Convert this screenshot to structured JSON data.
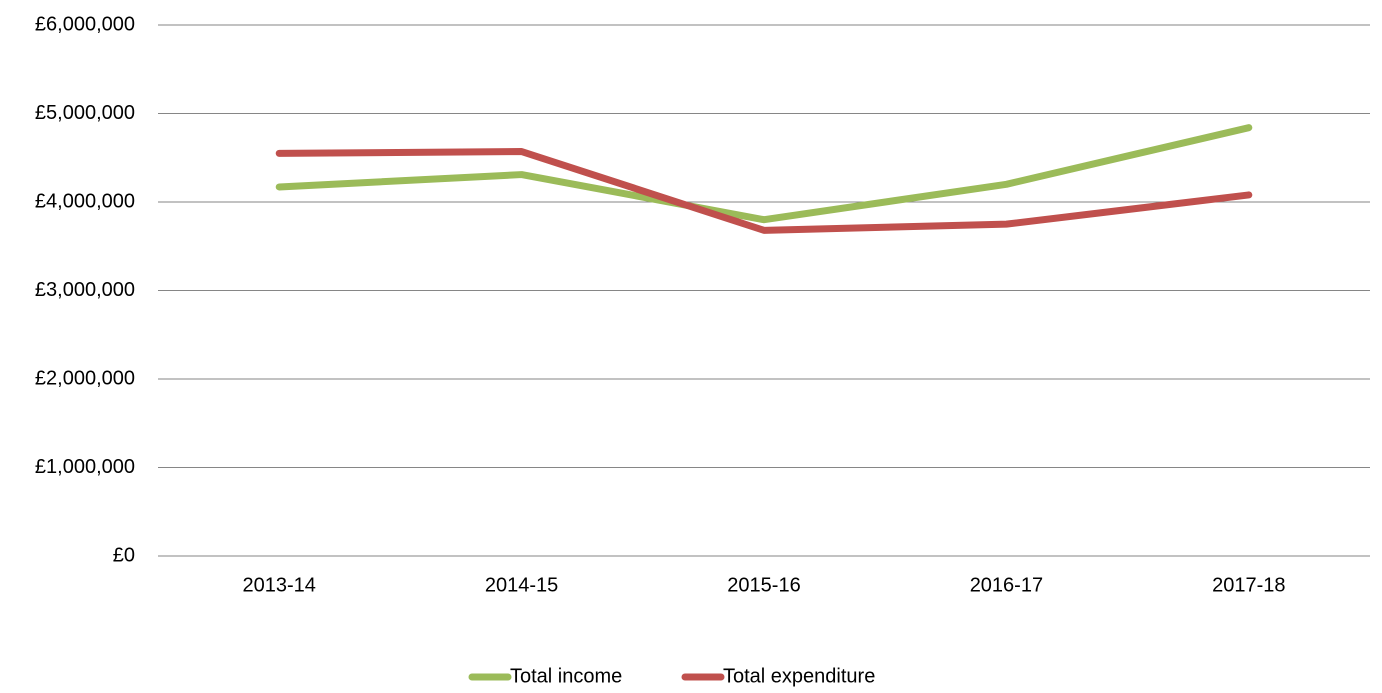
{
  "chart_data": {
    "type": "line",
    "categories": [
      "2013-14",
      "2014-15",
      "2015-16",
      "2016-17",
      "2017-18"
    ],
    "series": [
      {
        "name": "Total income",
        "color": "#9bbb59",
        "values": [
          4170000,
          4310000,
          3800000,
          4200000,
          4840000
        ]
      },
      {
        "name": "Total expenditure",
        "color": "#c0504d",
        "values": [
          4550000,
          4570000,
          3680000,
          3750000,
          4080000
        ]
      }
    ],
    "ylim": [
      0,
      6000000
    ],
    "yticks": [
      {
        "value": 0,
        "label": "£0"
      },
      {
        "value": 1000000,
        "label": "£1,000,000"
      },
      {
        "value": 2000000,
        "label": "£2,000,000"
      },
      {
        "value": 3000000,
        "label": "£3,000,000"
      },
      {
        "value": 4000000,
        "label": "£4,000,000"
      },
      {
        "value": 5000000,
        "label": "£5,000,000"
      },
      {
        "value": 6000000,
        "label": "£6,000,000"
      }
    ],
    "grid": true,
    "legend": "bottom"
  }
}
